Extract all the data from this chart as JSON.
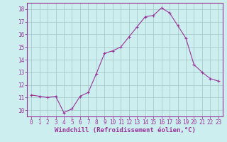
{
  "x": [
    0,
    1,
    2,
    3,
    4,
    5,
    6,
    7,
    8,
    9,
    10,
    11,
    12,
    13,
    14,
    15,
    16,
    17,
    18,
    19,
    20,
    21,
    22,
    23
  ],
  "y": [
    11.2,
    11.1,
    11.0,
    11.1,
    9.8,
    10.1,
    11.1,
    11.4,
    12.9,
    14.5,
    14.7,
    15.0,
    15.8,
    16.6,
    17.4,
    17.5,
    18.1,
    17.7,
    16.7,
    15.7,
    13.6,
    13.0,
    12.5,
    12.3
  ],
  "line_color": "#993399",
  "marker": "+",
  "bg_color": "#cceeee",
  "grid_color": "#aacccc",
  "axis_color": "#993399",
  "xlabel": "Windchill (Refroidissement éolien,°C)",
  "xlabel_fontsize": 6.5,
  "tick_fontsize": 5.5,
  "ylim": [
    9.5,
    18.5
  ],
  "yticks": [
    10,
    11,
    12,
    13,
    14,
    15,
    16,
    17,
    18
  ],
  "xlim": [
    -0.5,
    23.5
  ],
  "xticks": [
    0,
    1,
    2,
    3,
    4,
    5,
    6,
    7,
    8,
    9,
    10,
    11,
    12,
    13,
    14,
    15,
    16,
    17,
    18,
    19,
    20,
    21,
    22,
    23
  ]
}
